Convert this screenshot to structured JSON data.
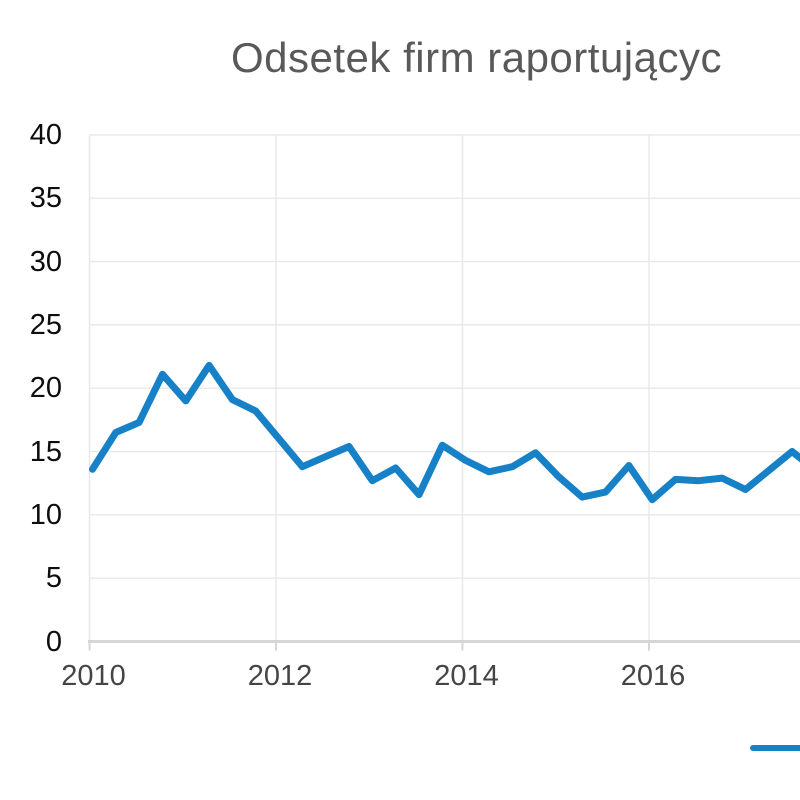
{
  "title": "Odsetek firm raportującyc",
  "colors": {
    "line": "#1681c7",
    "title_text": "#595959",
    "y_label_text": "#0d0d0d",
    "x_label_text": "#454545",
    "gridline": "#e8e8e8",
    "axis_line": "#d6d6d6",
    "background": "#ffffff"
  },
  "legend": {
    "marker": "blue-line-segment",
    "position": "bottom-right, clipped at image edge, label not visible"
  },
  "chart_data": {
    "type": "line",
    "title": "Odsetek firm raportującyc",
    "title_note": "title clipped by right image edge",
    "x": [
      "2010 Q1",
      "2010 Q2",
      "2010 Q3",
      "2010 Q4",
      "2011 Q1",
      "2011 Q2",
      "2011 Q3",
      "2011 Q4",
      "2012 Q1",
      "2012 Q2",
      "2012 Q3",
      "2012 Q4",
      "2013 Q1",
      "2013 Q2",
      "2013 Q3",
      "2013 Q4",
      "2014 Q1",
      "2014 Q2",
      "2014 Q3",
      "2014 Q4",
      "2015 Q1",
      "2015 Q2",
      "2015 Q3",
      "2015 Q4",
      "2016 Q1",
      "2016 Q2",
      "2016 Q3",
      "2016 Q4",
      "2017 Q1",
      "2017 Q2",
      "2017 Q3"
    ],
    "values": [
      13.6,
      16.5,
      17.3,
      21.1,
      19.0,
      21.8,
      19.1,
      18.2,
      16.0,
      13.8,
      14.6,
      15.4,
      12.7,
      13.7,
      11.6,
      15.5,
      14.3,
      13.4,
      13.8,
      14.9,
      13.0,
      11.4,
      11.8,
      13.9,
      11.2,
      12.8,
      12.7,
      12.9,
      12.0,
      13.5,
      15.0
    ],
    "right_edge_clip_value": 14.5,
    "x_tick_labels": [
      "2010",
      "2012",
      "2014",
      "2016"
    ],
    "y_tick_labels": [
      "0",
      "5",
      "10",
      "15",
      "20",
      "25",
      "30",
      "35",
      "40"
    ],
    "ylim": [
      0,
      40
    ],
    "grid": true,
    "legend_position": "bottom-right (clipped)"
  }
}
